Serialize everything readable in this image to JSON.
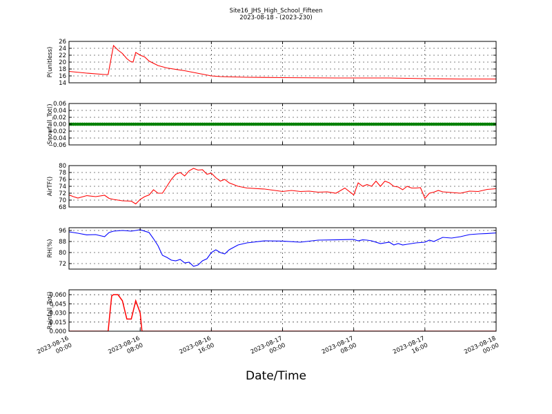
{
  "figure": {
    "title": "Site16_JHS_High_School_Fifteen",
    "subtitle": "2023-08-18 - (2023-230)",
    "xlabel": "Date/Time"
  },
  "x_ticks": [
    {
      "hour": 0,
      "line1": "2023-08-16",
      "line2": "00:00"
    },
    {
      "hour": 8,
      "line1": "2023-08-16",
      "line2": "08:00"
    },
    {
      "hour": 16,
      "line1": "2023-08-16",
      "line2": "16:00"
    },
    {
      "hour": 24,
      "line1": "2023-08-17",
      "line2": "00:00"
    },
    {
      "hour": 32,
      "line1": "2023-08-17",
      "line2": "08:00"
    },
    {
      "hour": 40,
      "line1": "2023-08-17",
      "line2": "16:00"
    },
    {
      "hour": 48,
      "line1": "2023-08-18",
      "line2": "00:00"
    }
  ],
  "chart_data": [
    {
      "type": "line",
      "ylabel": "P(unitless)",
      "ylim": [
        14,
        26
      ],
      "yticks": [
        "14",
        "16",
        "18",
        "20",
        "22",
        "24",
        "26"
      ],
      "grid": true,
      "color": "#ff0000",
      "x_unit": "hours since 2023-08-16 00:00",
      "x": [
        0,
        2,
        4,
        4.4,
        5.0,
        5.5,
        6.0,
        6.5,
        6.9,
        7.2,
        7.5,
        8.0,
        8.5,
        9.0,
        10.0,
        11.0,
        13.0,
        15.0,
        16.0,
        17.0,
        20.0,
        24.0,
        30.0,
        36.0,
        40.0,
        44.0,
        48.0
      ],
      "y": [
        17.3,
        16.8,
        16.4,
        16.4,
        24.8,
        23.5,
        22.5,
        21.0,
        20.2,
        20.0,
        22.8,
        22.0,
        21.5,
        20.3,
        19.0,
        18.3,
        17.5,
        16.5,
        16.0,
        15.8,
        15.6,
        15.5,
        15.4,
        15.4,
        15.2,
        15.1,
        15.1
      ]
    },
    {
      "type": "scatter",
      "ylabel": "Snowfall_Tot()",
      "ylim": [
        -0.06,
        0.06
      ],
      "yticks": [
        "−0.06",
        "−0.04",
        "−0.02",
        "0.00",
        "0.02",
        "0.04",
        "0.06"
      ],
      "grid": true,
      "color": "#008000",
      "x_unit": "hours since 2023-08-16 00:00",
      "x_range": [
        0,
        48
      ],
      "x_step": 0.25,
      "constant_value": 0.0
    },
    {
      "type": "line",
      "ylabel": "AirTF()",
      "ylim": [
        68,
        80
      ],
      "yticks": [
        "68",
        "70",
        "72",
        "74",
        "76",
        "78",
        "80"
      ],
      "grid": true,
      "color": "#ff0000",
      "x_unit": "hours since 2023-08-16 00:00",
      "x": [
        0,
        0.5,
        1.0,
        2.0,
        3.0,
        4.0,
        4.5,
        5.0,
        6.0,
        7.0,
        7.5,
        8.0,
        8.5,
        9.0,
        9.5,
        10.0,
        10.5,
        11.0,
        11.5,
        12.0,
        12.5,
        13.0,
        13.5,
        14.0,
        14.5,
        15.0,
        15.5,
        16.0,
        16.5,
        17.0,
        17.5,
        18.0,
        19.0,
        20.0,
        22.0,
        24.0,
        25.0,
        26.0,
        27.0,
        28.0,
        29.0,
        30.0,
        31.0,
        32.0,
        32.5,
        33.0,
        33.5,
        34.0,
        34.5,
        35.0,
        35.5,
        36.0,
        36.5,
        37.0,
        37.5,
        38.0,
        38.5,
        39.0,
        39.5,
        40.0,
        40.5,
        41.0,
        41.5,
        42.0,
        43.0,
        44.0,
        45.0,
        46.0,
        47.0,
        48.0
      ],
      "y": [
        71.5,
        71.0,
        70.6,
        71.3,
        71.0,
        71.4,
        70.5,
        70.2,
        69.8,
        69.7,
        68.9,
        70.2,
        71.0,
        71.5,
        73.0,
        72.0,
        72.0,
        74.0,
        76.0,
        77.5,
        78.0,
        77.0,
        78.5,
        79.2,
        78.7,
        78.8,
        77.5,
        77.8,
        76.5,
        75.5,
        76.0,
        75.0,
        74.0,
        73.5,
        73.2,
        72.5,
        72.8,
        72.5,
        72.6,
        72.3,
        72.4,
        72.0,
        73.5,
        71.5,
        75.0,
        74.0,
        74.5,
        74.0,
        75.5,
        74.0,
        75.5,
        75.0,
        74.0,
        73.8,
        73.0,
        74.0,
        73.5,
        73.5,
        73.6,
        70.5,
        72.0,
        72.3,
        72.8,
        72.4,
        72.2,
        72.0,
        72.6,
        72.5,
        73.1,
        73.3
      ]
    },
    {
      "type": "line",
      "ylabel": "RH(%)",
      "ylim": [
        68,
        98
      ],
      "yticks": [
        "72",
        "80",
        "88",
        "96"
      ],
      "grid": true,
      "color": "#0000ff",
      "x_unit": "hours since 2023-08-16 00:00",
      "x": [
        0,
        1.0,
        2.0,
        3.0,
        4.0,
        4.5,
        5.0,
        6.0,
        7.0,
        7.5,
        8.0,
        9.0,
        9.5,
        10.0,
        10.5,
        11.0,
        11.5,
        12.0,
        12.5,
        13.0,
        13.5,
        14.0,
        14.5,
        15.0,
        15.5,
        16.0,
        16.5,
        17.0,
        17.5,
        18.0,
        19.0,
        20.0,
        22.0,
        24.0,
        26.0,
        28.0,
        30.0,
        32.0,
        32.5,
        33.0,
        33.5,
        34.0,
        35.0,
        36.0,
        36.5,
        37.0,
        37.5,
        38.0,
        38.5,
        39.0,
        40.0,
        40.5,
        41.0,
        41.5,
        42.0,
        43.0,
        44.0,
        45.0,
        46.0,
        47.0,
        48.0
      ],
      "y": [
        95.0,
        94.0,
        92.8,
        93.0,
        91.5,
        94.5,
        95.5,
        96.0,
        95.5,
        96.0,
        96.5,
        94.5,
        90.0,
        85.0,
        78.0,
        76.5,
        74.5,
        74.0,
        75.0,
        72.5,
        73.0,
        70.0,
        71.0,
        74.0,
        75.5,
        80.0,
        82.0,
        80.0,
        79.0,
        82.0,
        85.5,
        87.0,
        88.5,
        88.3,
        87.5,
        89.0,
        89.2,
        89.5,
        88.5,
        89.2,
        89.0,
        88.5,
        86.5,
        87.5,
        85.5,
        86.5,
        85.5,
        86.0,
        86.5,
        87.0,
        87.5,
        89.0,
        88.0,
        89.5,
        91.0,
        90.5,
        91.5,
        93.0,
        93.5,
        93.8,
        94.2
      ]
    },
    {
      "type": "line",
      "ylabel": "Rainfall_Tot()",
      "ylim": [
        0,
        0.068
      ],
      "yticks": [
        "0.000",
        "0.015",
        "0.030",
        "0.045",
        "0.060"
      ],
      "grid": true,
      "color": "#ff0000",
      "x_unit": "hours since 2023-08-16 00:00",
      "x": [
        0,
        4.4,
        4.6,
        4.8,
        5.0,
        5.5,
        6.0,
        6.5,
        7.0,
        7.5,
        8.0,
        8.2,
        48.0
      ],
      "y": [
        0.0,
        0.0,
        0.03,
        0.058,
        0.06,
        0.06,
        0.05,
        0.02,
        0.02,
        0.05,
        0.03,
        0.0,
        0.0
      ]
    }
  ]
}
